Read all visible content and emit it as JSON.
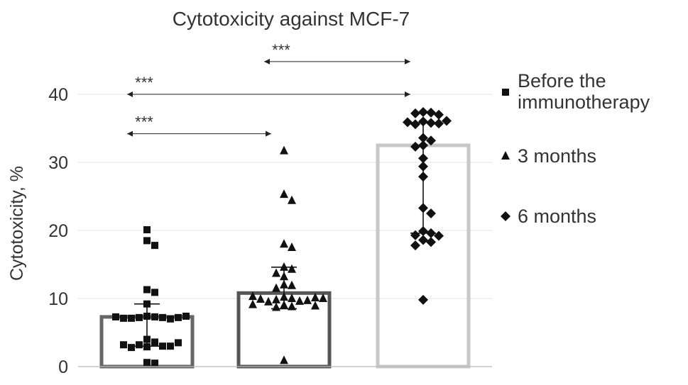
{
  "chart_data": {
    "type": "bar",
    "title": "Cytotoxicity against MCF-7",
    "xlabel": "",
    "ylabel": "Cytotoxicity, %",
    "ylim": [
      0,
      40
    ],
    "yticks": [
      0,
      10,
      20,
      30,
      40
    ],
    "grid": true,
    "legend_position": "right",
    "series": [
      {
        "name": "Before the immunotherapy",
        "marker": "square",
        "bar_color": "#666666",
        "mean": 7.3,
        "sd": 1.9,
        "err_high": 9.2,
        "err_low": 3.0,
        "points": [
          20.1,
          18.5,
          17.8,
          11.3,
          10.9,
          9.2,
          7.4,
          7.3,
          7.2,
          7.2,
          7.1,
          7.0,
          7.1,
          7.2,
          7.3,
          7.4,
          4.0,
          3.6,
          3.2,
          3.0,
          2.9,
          2.8,
          3.0,
          3.2,
          3.5,
          0.6,
          0.5
        ]
      },
      {
        "name": "3 months",
        "marker": "triangle",
        "bar_color": "#555555",
        "mean": 10.8,
        "sd": 3.8,
        "err_high": 14.6,
        "err_low": 8.5,
        "points": [
          31.7,
          25.3,
          24.4,
          18.0,
          17.5,
          14.6,
          14.3,
          13.7,
          13.2,
          12.0,
          11.9,
          11.5,
          10.2,
          10.0,
          9.8,
          9.6,
          9.5,
          9.7,
          9.9,
          10.1,
          10.3,
          10.0,
          9.0,
          8.8,
          8.7,
          8.9,
          9.1,
          0.9
        ]
      },
      {
        "name": "6 months",
        "marker": "diamond",
        "bar_color": "#c8c8c8",
        "mean": 32.5,
        "sd": 3.3,
        "err_high": 35.8,
        "err_low": 19.6,
        "points": [
          37.4,
          37.3,
          37.2,
          37.0,
          36.0,
          35.8,
          35.6,
          35.7,
          35.9,
          36.1,
          33.6,
          33.2,
          32.5,
          32.3,
          30.6,
          29.4,
          27.9,
          23.3,
          22.5,
          19.9,
          19.6,
          19.3,
          19.2,
          18.6,
          18.3,
          17.8,
          9.8
        ]
      }
    ],
    "annotations": [
      {
        "label": "***",
        "from": 0,
        "to": 1,
        "y": 34.2
      },
      {
        "label": "***",
        "from": 0,
        "to": 2,
        "y": 40.0
      },
      {
        "label": "***",
        "from": 1,
        "to": 2,
        "y": 44.8
      }
    ]
  }
}
